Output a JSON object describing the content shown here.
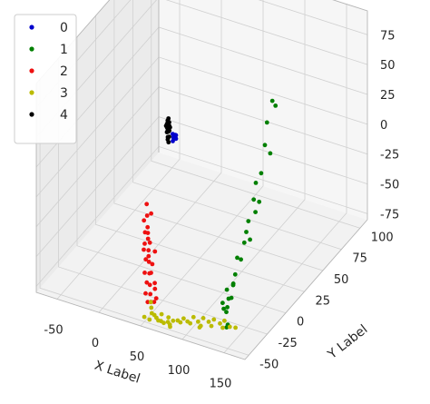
{
  "chart_data": {
    "type": "scatter",
    "projection": "3d",
    "title": "",
    "xlabel": "X Label",
    "ylabel": "Y Label",
    "zlabel": "",
    "xlim": [
      -75,
      175
    ],
    "ylim": [
      -55,
      110
    ],
    "zlim": [
      -80,
      95
    ],
    "xticks": [
      -50,
      0,
      50,
      100,
      150
    ],
    "yticks": [
      -50,
      -25,
      0,
      25,
      50,
      75,
      100
    ],
    "zticks": [
      -75,
      -50,
      -25,
      0,
      25,
      50,
      75
    ],
    "grid": true,
    "legend": {
      "position": "top-left",
      "entries": [
        "0",
        "1",
        "2",
        "3",
        "4"
      ]
    },
    "series": [
      {
        "name": "0",
        "color": "#0000cc",
        "points": [
          [
            5,
            40,
            0
          ],
          [
            6,
            41,
            2
          ],
          [
            5,
            39,
            -2
          ],
          [
            6,
            42,
            1
          ],
          [
            4,
            40,
            3
          ],
          [
            7,
            41,
            -1
          ],
          [
            5,
            43,
            0
          ],
          [
            6,
            39,
            2
          ]
        ]
      },
      {
        "name": "1",
        "color": "#008000",
        "points": [
          [
            150,
            10,
            85
          ],
          [
            152,
            12,
            80
          ],
          [
            148,
            5,
            70
          ],
          [
            150,
            0,
            55
          ],
          [
            152,
            5,
            45
          ],
          [
            150,
            -5,
            35
          ],
          [
            148,
            -10,
            30
          ],
          [
            150,
            -15,
            20
          ],
          [
            152,
            -10,
            15
          ],
          [
            148,
            -20,
            5
          ],
          [
            150,
            -25,
            0
          ],
          [
            152,
            -30,
            -5
          ],
          [
            148,
            -35,
            -15
          ],
          [
            150,
            -40,
            -25
          ],
          [
            152,
            -45,
            -30
          ],
          [
            148,
            -30,
            -20
          ],
          [
            150,
            -20,
            -10
          ],
          [
            152,
            -15,
            10
          ],
          [
            140,
            -40,
            -40
          ],
          [
            145,
            -45,
            -50
          ],
          [
            150,
            -50,
            -60
          ],
          [
            138,
            -42,
            -55
          ],
          [
            142,
            -48,
            -45
          ],
          [
            146,
            -38,
            -35
          ],
          [
            150,
            -52,
            -48
          ],
          [
            153,
            -55,
            -58
          ],
          [
            149,
            -44,
            -42
          ],
          [
            151,
            -50,
            -38
          ]
        ]
      },
      {
        "name": "2",
        "color": "#ee1111",
        "points": [
          [
            -5,
            15,
            -40
          ],
          [
            0,
            10,
            -45
          ],
          [
            5,
            5,
            -50
          ],
          [
            10,
            0,
            -55
          ],
          [
            15,
            -5,
            -60
          ],
          [
            20,
            -10,
            -65
          ],
          [
            25,
            -15,
            -70
          ],
          [
            30,
            -20,
            -75
          ],
          [
            35,
            -25,
            -78
          ],
          [
            40,
            -30,
            -80
          ],
          [
            -2,
            8,
            -48
          ],
          [
            8,
            2,
            -52
          ],
          [
            12,
            -8,
            -58
          ],
          [
            18,
            -12,
            -62
          ],
          [
            22,
            -18,
            -68
          ],
          [
            28,
            -22,
            -72
          ],
          [
            32,
            -28,
            -76
          ],
          [
            38,
            -32,
            -79
          ],
          [
            3,
            12,
            -44
          ],
          [
            14,
            -2,
            -56
          ],
          [
            24,
            -10,
            -66
          ],
          [
            34,
            -18,
            -74
          ],
          [
            6,
            0,
            -60
          ],
          [
            16,
            -6,
            -64
          ],
          [
            26,
            -14,
            -70
          ],
          [
            36,
            -20,
            -77
          ],
          [
            42,
            -25,
            -80
          ],
          [
            44,
            -30,
            -79
          ],
          [
            2,
            5,
            -55
          ],
          [
            20,
            -2,
            -62
          ]
        ]
      },
      {
        "name": "3",
        "color": "#bbbb00",
        "points": [
          [
            40,
            -30,
            -80
          ],
          [
            50,
            -40,
            -80
          ],
          [
            60,
            -45,
            -78
          ],
          [
            70,
            -50,
            -75
          ],
          [
            80,
            -52,
            -72
          ],
          [
            90,
            -50,
            -70
          ],
          [
            100,
            -48,
            -70
          ],
          [
            110,
            -45,
            -70
          ],
          [
            120,
            -42,
            -70
          ],
          [
            130,
            -38,
            -72
          ],
          [
            45,
            -35,
            -80
          ],
          [
            55,
            -42,
            -79
          ],
          [
            65,
            -48,
            -77
          ],
          [
            75,
            -52,
            -74
          ],
          [
            85,
            -55,
            -71
          ],
          [
            95,
            -52,
            -69
          ],
          [
            105,
            -50,
            -69
          ],
          [
            115,
            -47,
            -71
          ],
          [
            125,
            -44,
            -71
          ],
          [
            135,
            -40,
            -73
          ],
          [
            60,
            -38,
            -80
          ],
          [
            80,
            -45,
            -76
          ],
          [
            100,
            -40,
            -72
          ],
          [
            120,
            -35,
            -73
          ],
          [
            70,
            -40,
            -79
          ],
          [
            90,
            -42,
            -74
          ],
          [
            110,
            -38,
            -72
          ],
          [
            130,
            -32,
            -74
          ],
          [
            50,
            -50,
            -76
          ],
          [
            140,
            -36,
            -74
          ],
          [
            145,
            -34,
            -75
          ],
          [
            58,
            -52,
            -75
          ],
          [
            88,
            -58,
            -70
          ],
          [
            118,
            -52,
            -68
          ]
        ]
      },
      {
        "name": "4",
        "color": "#000000",
        "points": [
          [
            -2,
            40,
            5
          ],
          [
            -1,
            41,
            8
          ],
          [
            -3,
            40,
            3
          ],
          [
            -2,
            42,
            10
          ],
          [
            -1,
            39,
            0
          ],
          [
            -3,
            41,
            12
          ],
          [
            -2,
            40,
            -3
          ],
          [
            -1,
            42,
            6
          ],
          [
            -3,
            39,
            9
          ],
          [
            -2,
            41,
            14
          ],
          [
            -1,
            40,
            -5
          ],
          [
            -3,
            42,
            2
          ],
          [
            -2,
            39,
            11
          ],
          [
            -1,
            41,
            4
          ],
          [
            -3,
            40,
            7
          ],
          [
            -2,
            42,
            -2
          ]
        ]
      }
    ]
  }
}
